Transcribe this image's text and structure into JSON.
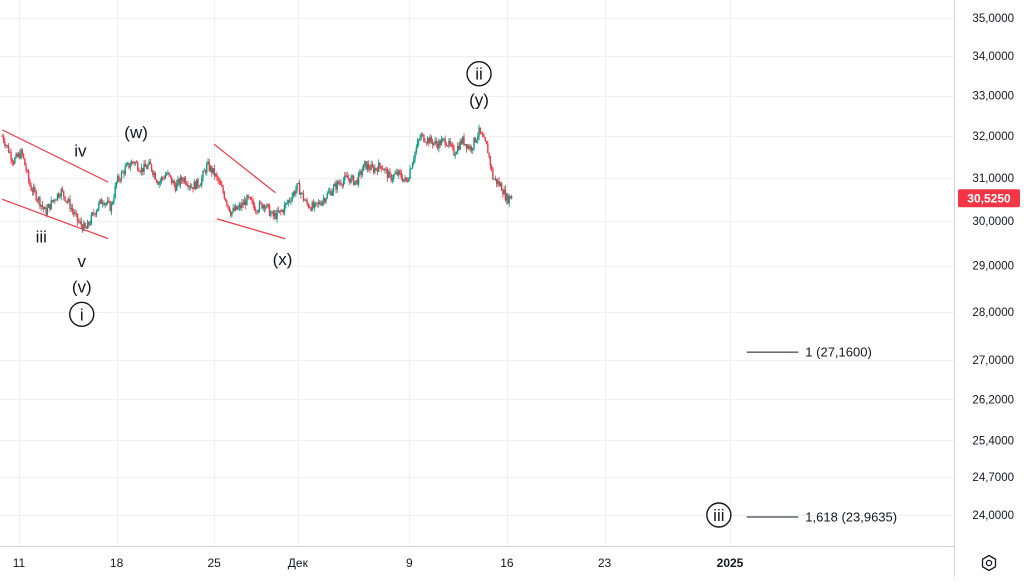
{
  "chart_data": {
    "type": "candlestick",
    "y_axis": {
      "ticks": [
        35.0,
        34.0,
        33.0,
        32.0,
        31.0,
        30.0,
        29.0,
        28.0,
        27.0,
        26.2,
        25.4,
        24.7,
        24.0
      ],
      "tick_labels": [
        "35,0000",
        "34,0000",
        "33,0000",
        "32,0000",
        "31,0000",
        "30,0000",
        "29,0000",
        "28,0000",
        "27,0000",
        "26,2000",
        "25,4000",
        "24,7000",
        "24,0000"
      ],
      "scale": "log",
      "ylim": [
        23.6,
        35.3
      ]
    },
    "x_axis": {
      "ticks": [
        {
          "label": "11",
          "day": 11
        },
        {
          "label": "18",
          "day": 18
        },
        {
          "label": "25",
          "day": 25
        },
        {
          "label": "Дек",
          "day": 31
        },
        {
          "label": "9",
          "day": 39
        },
        {
          "label": "16",
          "day": 46
        },
        {
          "label": "23",
          "day": 53
        },
        {
          "label": "2025",
          "day": 62,
          "bold": true
        }
      ],
      "xlim": [
        9.8,
        78.5
      ]
    },
    "last_price": {
      "label": "30,5250",
      "value": 30.525,
      "color": "#f23645"
    },
    "price_path": [
      [
        9.8,
        32.0
      ],
      [
        10.6,
        31.4
      ],
      [
        11.2,
        31.6
      ],
      [
        11.8,
        30.8
      ],
      [
        12.4,
        30.5
      ],
      [
        12.9,
        30.2
      ],
      [
        13.5,
        30.5
      ],
      [
        14.0,
        30.7
      ],
      [
        14.6,
        30.4
      ],
      [
        15.2,
        30.0
      ],
      [
        15.8,
        29.8
      ],
      [
        16.4,
        30.2
      ],
      [
        17.0,
        30.5
      ],
      [
        17.6,
        30.3
      ],
      [
        18.0,
        30.9
      ],
      [
        18.6,
        31.2
      ],
      [
        19.2,
        31.4
      ],
      [
        19.8,
        31.2
      ],
      [
        20.4,
        31.3
      ],
      [
        21.0,
        30.9
      ],
      [
        21.6,
        31.1
      ],
      [
        22.2,
        30.8
      ],
      [
        22.8,
        31.0
      ],
      [
        23.4,
        30.8
      ],
      [
        24.0,
        30.9
      ],
      [
        24.5,
        31.3
      ],
      [
        25.0,
        31.1
      ],
      [
        25.6,
        30.7
      ],
      [
        26.2,
        30.2
      ],
      [
        26.8,
        30.3
      ],
      [
        27.4,
        30.5
      ],
      [
        28.0,
        30.3
      ],
      [
        28.6,
        30.4
      ],
      [
        29.2,
        30.1
      ],
      [
        29.8,
        30.2
      ],
      [
        30.4,
        30.5
      ],
      [
        31.0,
        30.8
      ],
      [
        31.6,
        30.4
      ],
      [
        32.2,
        30.3
      ],
      [
        32.8,
        30.5
      ],
      [
        33.4,
        30.7
      ],
      [
        34.0,
        30.9
      ],
      [
        34.6,
        31.0
      ],
      [
        35.2,
        30.9
      ],
      [
        35.8,
        31.3
      ],
      [
        36.4,
        31.2
      ],
      [
        37.0,
        31.3
      ],
      [
        37.6,
        31.0
      ],
      [
        38.2,
        31.1
      ],
      [
        38.8,
        30.9
      ],
      [
        39.3,
        31.5
      ],
      [
        39.8,
        32.0
      ],
      [
        40.4,
        31.9
      ],
      [
        41.0,
        31.8
      ],
      [
        41.6,
        31.9
      ],
      [
        42.2,
        31.6
      ],
      [
        42.8,
        31.9
      ],
      [
        43.4,
        31.7
      ],
      [
        44.0,
        32.1
      ],
      [
        44.6,
        31.7
      ],
      [
        45.0,
        31.0
      ],
      [
        45.6,
        30.8
      ],
      [
        46.0,
        30.5
      ],
      [
        46.4,
        30.6
      ]
    ],
    "channels": [
      {
        "name": "channel-1-upper",
        "from": [
          9.8,
          32.15
        ],
        "to": [
          17.4,
          30.9
        ]
      },
      {
        "name": "channel-1-lower",
        "from": [
          9.8,
          30.5
        ],
        "to": [
          17.4,
          29.6
        ]
      },
      {
        "name": "channel-2-upper",
        "from": [
          25.0,
          31.8
        ],
        "to": [
          29.4,
          30.65
        ]
      },
      {
        "name": "channel-2-lower",
        "from": [
          25.2,
          30.05
        ],
        "to": [
          30.1,
          29.6
        ]
      }
    ],
    "wave_labels": [
      {
        "text": "iv",
        "x": 15.4,
        "y": 31.65,
        "circled": false
      },
      {
        "text": "(w)",
        "x": 19.4,
        "y": 32.1,
        "circled": false
      },
      {
        "text": "iii",
        "x": 12.6,
        "y": 29.65,
        "circled": false
      },
      {
        "text": "v",
        "x": 15.5,
        "y": 29.1,
        "circled": false
      },
      {
        "text": "(v)",
        "x": 15.5,
        "y": 28.55,
        "circled": false
      },
      {
        "text": "i",
        "x": 15.5,
        "y": 27.95,
        "circled": true
      },
      {
        "text": "(x)",
        "x": 29.9,
        "y": 29.15,
        "circled": false
      },
      {
        "text": "ii",
        "x": 44.0,
        "y": 33.55,
        "circled": true
      },
      {
        "text": "(y)",
        "x": 44.0,
        "y": 32.9,
        "circled": false
      },
      {
        "text": "iii",
        "x": 61.2,
        "y": 24.0,
        "circled": true
      }
    ],
    "fib_levels": [
      {
        "label": "1 (27,1600)",
        "value": 27.16,
        "x_from": 63.2,
        "x_to": 66.9
      },
      {
        "label": "1,618 (23,9635)",
        "value": 23.9635,
        "x_from": 63.2,
        "x_to": 66.9
      }
    ],
    "colors": {
      "up": "#089981",
      "down": "#f23645",
      "channel": "#f23645",
      "grid": "#eef0f3",
      "text": "#131722"
    }
  },
  "ui": {
    "settings_icon": "gear-icon"
  }
}
